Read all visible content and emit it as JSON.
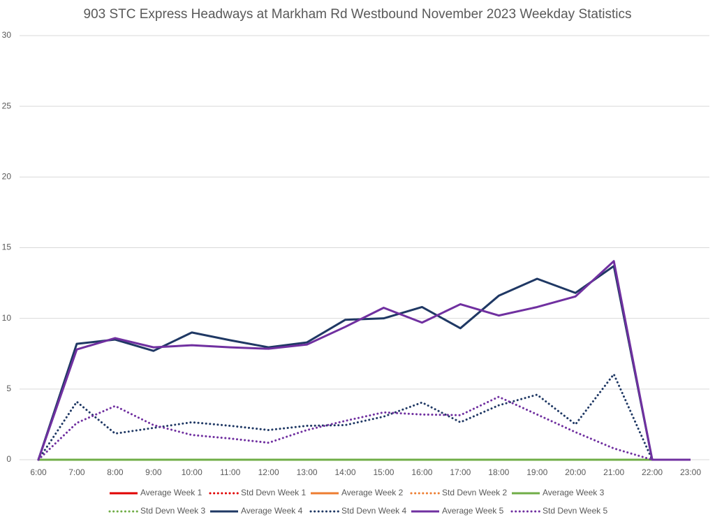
{
  "chart_data": {
    "type": "line",
    "title": "903 STC Express Headways at Markham Rd Westbound November 2023 Weekday Statistics",
    "categories": [
      "6:00",
      "7:00",
      "8:00",
      "9:00",
      "10:00",
      "11:00",
      "12:00",
      "13:00",
      "14:00",
      "15:00",
      "16:00",
      "17:00",
      "18:00",
      "19:00",
      "20:00",
      "21:00",
      "22:00",
      "23:00"
    ],
    "ylim": [
      0,
      30
    ],
    "yticks": [
      0,
      5,
      10,
      15,
      20,
      25,
      30
    ],
    "grid": true,
    "legend": "bottom",
    "series": [
      {
        "name": "Average Week 1",
        "color": "#e00000",
        "style": "solid",
        "values": [
          0,
          0,
          0,
          0,
          0,
          0,
          0,
          0,
          0,
          0,
          0,
          0,
          0,
          0,
          0,
          0,
          0,
          null
        ]
      },
      {
        "name": "Std Devn Week 1",
        "color": "#e00000",
        "style": "dotted",
        "values": [
          0,
          0,
          0,
          0,
          0,
          0,
          0,
          0,
          0,
          0,
          0,
          0,
          0,
          0,
          0,
          0,
          0,
          null
        ]
      },
      {
        "name": "Average Week 2",
        "color": "#ed7d31",
        "style": "solid",
        "values": [
          0,
          0,
          0,
          0,
          0,
          0,
          0,
          0,
          0,
          0,
          0,
          0,
          0,
          0,
          0,
          0,
          0,
          null
        ]
      },
      {
        "name": "Std Devn Week 2",
        "color": "#ed7d31",
        "style": "dotted",
        "values": [
          0,
          0,
          0,
          0,
          0,
          0,
          0,
          0,
          0,
          0,
          0,
          0,
          0,
          0,
          0,
          0,
          0,
          null
        ]
      },
      {
        "name": "Average Week 3",
        "color": "#70ad47",
        "style": "solid",
        "values": [
          0,
          0,
          0,
          0,
          0,
          0,
          0,
          0,
          0,
          0,
          0,
          0,
          0,
          0,
          0,
          0,
          0,
          null
        ]
      },
      {
        "name": "Std Devn Week 3",
        "color": "#70ad47",
        "style": "dotted",
        "values": [
          0,
          0,
          0,
          0,
          0,
          0,
          0,
          0,
          0,
          0,
          0,
          0,
          0,
          0,
          0,
          0,
          0,
          null
        ]
      },
      {
        "name": "Average Week 4",
        "color": "#1f3864",
        "style": "solid",
        "values": [
          0,
          8.2,
          8.5,
          7.7,
          9.0,
          8.45,
          7.95,
          8.3,
          9.9,
          10.0,
          10.8,
          9.3,
          11.6,
          12.8,
          11.8,
          13.7,
          0,
          0
        ]
      },
      {
        "name": "Std Devn Week 4",
        "color": "#1f3864",
        "style": "dotted",
        "values": [
          0,
          4.1,
          1.85,
          2.25,
          2.65,
          2.4,
          2.1,
          2.4,
          2.45,
          3.05,
          4.05,
          2.65,
          3.85,
          4.6,
          2.5,
          6.05,
          0,
          null
        ]
      },
      {
        "name": "Average Week 5",
        "color": "#7030a0",
        "style": "solid",
        "values": [
          0,
          7.8,
          8.6,
          7.95,
          8.1,
          7.95,
          7.85,
          8.15,
          9.4,
          10.75,
          9.7,
          11.0,
          10.2,
          10.8,
          11.55,
          14.05,
          0,
          0
        ]
      },
      {
        "name": "Std Devn Week 5",
        "color": "#7030a0",
        "style": "dotted",
        "values": [
          0,
          2.6,
          3.8,
          2.45,
          1.75,
          1.5,
          1.2,
          2.1,
          2.75,
          3.35,
          3.2,
          3.15,
          4.45,
          3.2,
          1.95,
          0.8,
          0,
          null
        ]
      }
    ]
  }
}
